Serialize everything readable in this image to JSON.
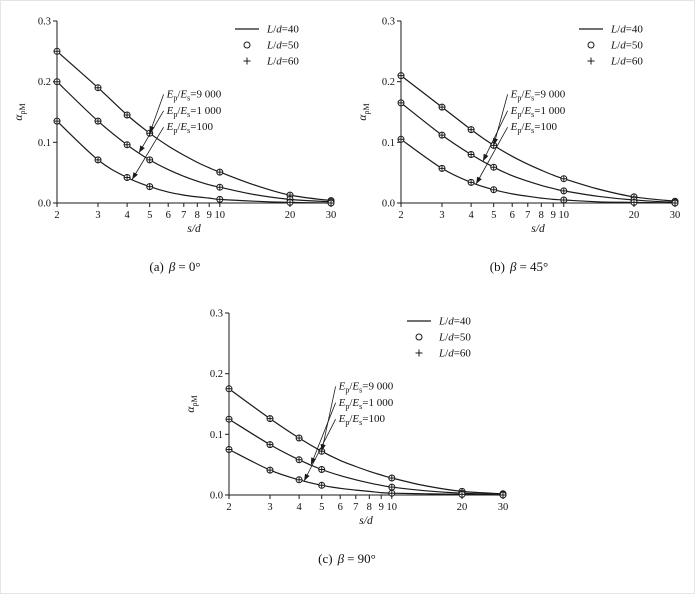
{
  "colors": {
    "stroke": "#1a1a1a",
    "background": "#ffffff"
  },
  "figure": {
    "captions": [
      {
        "label": "(a)",
        "symbol": "β",
        "value": "= 0°"
      },
      {
        "label": "(b)",
        "symbol": "β",
        "value": "= 45°"
      },
      {
        "label": "(c)",
        "symbol": "β",
        "value": "= 90°"
      }
    ]
  },
  "axes": {
    "xlabel": "s/d",
    "ylabel": "αρM",
    "ylabel_parts": [
      {
        "t": "α",
        "italic": true
      },
      {
        "t": "ρM",
        "sub": true
      }
    ],
    "yticks": [
      {
        "value": 0,
        "label": "0.0"
      },
      {
        "value": 0.1,
        "label": "0.1"
      },
      {
        "value": 0.2,
        "label": "0.2"
      },
      {
        "value": 0.3,
        "label": "0.3"
      }
    ],
    "xticks": [
      2,
      3,
      4,
      5,
      6,
      7,
      8,
      9,
      10,
      20,
      30
    ],
    "xlim": [
      2,
      30
    ],
    "ylim": [
      0,
      0.3
    ],
    "x_scale": "log"
  },
  "legend": {
    "entries": [
      {
        "marker": "line",
        "label": "L/d=40",
        "label_parts": [
          {
            "t": "L",
            "italic": true
          },
          {
            "t": "/"
          },
          {
            "t": "d",
            "italic": true
          },
          {
            "t": "=40"
          }
        ]
      },
      {
        "marker": "circle",
        "label": "L/d=50",
        "label_parts": [
          {
            "t": "L",
            "italic": true
          },
          {
            "t": "/"
          },
          {
            "t": "d",
            "italic": true
          },
          {
            "t": "=50"
          }
        ]
      },
      {
        "marker": "plus",
        "label": "L/d=60",
        "label_parts": [
          {
            "t": "L",
            "italic": true
          },
          {
            "t": "/"
          },
          {
            "t": "d",
            "italic": true
          },
          {
            "t": "=60"
          }
        ]
      }
    ]
  },
  "annotations": {
    "labels": [
      {
        "text": "Ep/Es=9 000",
        "parts": [
          {
            "t": "E",
            "italic": true
          },
          {
            "t": "p",
            "sub": true
          },
          {
            "t": "/"
          },
          {
            "t": "E",
            "italic": true
          },
          {
            "t": "s",
            "sub": true
          },
          {
            "t": "=9 000"
          }
        ]
      },
      {
        "text": "Ep/Es=1 000",
        "parts": [
          {
            "t": "E",
            "italic": true
          },
          {
            "t": "p",
            "sub": true
          },
          {
            "t": "/"
          },
          {
            "t": "E",
            "italic": true
          },
          {
            "t": "s",
            "sub": true
          },
          {
            "t": "=1 000"
          }
        ]
      },
      {
        "text": "Ep/Es=100",
        "parts": [
          {
            "t": "E",
            "italic": true
          },
          {
            "t": "p",
            "sub": true
          },
          {
            "t": "/"
          },
          {
            "t": "E",
            "italic": true
          },
          {
            "t": "s",
            "sub": true
          },
          {
            "t": "=100"
          }
        ]
      }
    ]
  },
  "chart_data": [
    {
      "type": "line",
      "title": "(a) β = 0°",
      "xlabel": "s/d",
      "ylabel": "αρM",
      "x_scale": "log",
      "xlim": [
        2,
        30
      ],
      "ylim": [
        0,
        0.3
      ],
      "x": [
        2,
        3,
        4,
        5,
        6,
        7,
        8,
        9,
        10,
        14,
        20,
        30
      ],
      "marker_x": [
        2,
        3,
        4,
        5,
        10,
        20,
        30
      ],
      "legend": [
        "L/d=40",
        "L/d=50",
        "L/d=60"
      ],
      "series": [
        {
          "name": "Ep/Es=9 000",
          "values": [
            0.25,
            0.19,
            0.145,
            0.115,
            0.094,
            0.079,
            0.067,
            0.058,
            0.051,
            0.03,
            0.013,
            0.004
          ]
        },
        {
          "name": "Ep/Es=1 000",
          "values": [
            0.2,
            0.135,
            0.096,
            0.071,
            0.055,
            0.044,
            0.036,
            0.03,
            0.026,
            0.014,
            0.006,
            0.002
          ]
        },
        {
          "name": "Ep/Es=100",
          "values": [
            0.135,
            0.071,
            0.042,
            0.027,
            0.018,
            0.013,
            0.01,
            0.008,
            0.006,
            0.003,
            0.001,
            0.0
          ]
        }
      ]
    },
    {
      "type": "line",
      "title": "(b) β = 45°",
      "xlabel": "s/d",
      "ylabel": "αρM",
      "x_scale": "log",
      "xlim": [
        2,
        30
      ],
      "ylim": [
        0,
        0.3
      ],
      "x": [
        2,
        3,
        4,
        5,
        6,
        7,
        8,
        9,
        10,
        14,
        20,
        30
      ],
      "marker_x": [
        2,
        3,
        4,
        5,
        10,
        20,
        30
      ],
      "legend": [
        "L/d=40",
        "L/d=50",
        "L/d=60"
      ],
      "series": [
        {
          "name": "Ep/Es=9 000",
          "values": [
            0.21,
            0.158,
            0.121,
            0.095,
            0.077,
            0.064,
            0.054,
            0.046,
            0.04,
            0.023,
            0.01,
            0.003
          ]
        },
        {
          "name": "Ep/Es=1 000",
          "values": [
            0.165,
            0.112,
            0.08,
            0.059,
            0.045,
            0.036,
            0.029,
            0.024,
            0.02,
            0.011,
            0.005,
            0.001
          ]
        },
        {
          "name": "Ep/Es=100",
          "values": [
            0.105,
            0.057,
            0.034,
            0.022,
            0.015,
            0.011,
            0.008,
            0.006,
            0.005,
            0.002,
            0.001,
            0.0
          ]
        }
      ]
    },
    {
      "type": "line",
      "title": "(c) β = 90°",
      "xlabel": "s/d",
      "ylabel": "αρM",
      "x_scale": "log",
      "xlim": [
        2,
        30
      ],
      "ylim": [
        0,
        0.3
      ],
      "x": [
        2,
        3,
        4,
        5,
        6,
        7,
        8,
        9,
        10,
        14,
        20,
        30
      ],
      "marker_x": [
        2,
        3,
        4,
        5,
        10,
        20,
        30
      ],
      "legend": [
        "L/d=40",
        "L/d=50",
        "L/d=60"
      ],
      "series": [
        {
          "name": "Ep/Es=9 000",
          "values": [
            0.175,
            0.126,
            0.094,
            0.072,
            0.057,
            0.047,
            0.039,
            0.033,
            0.028,
            0.015,
            0.006,
            0.002
          ]
        },
        {
          "name": "Ep/Es=1 000",
          "values": [
            0.125,
            0.083,
            0.058,
            0.042,
            0.032,
            0.025,
            0.02,
            0.016,
            0.013,
            0.007,
            0.003,
            0.001
          ]
        },
        {
          "name": "Ep/Es=100",
          "values": [
            0.075,
            0.041,
            0.025,
            0.016,
            0.011,
            0.008,
            0.006,
            0.004,
            0.003,
            0.002,
            0.001,
            0.0
          ]
        }
      ]
    }
  ]
}
